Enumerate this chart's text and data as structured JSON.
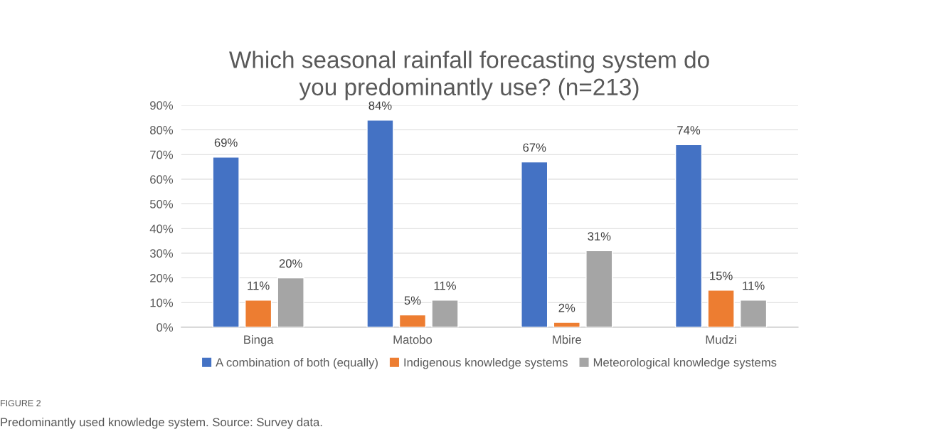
{
  "chart_data": {
    "type": "bar",
    "title": "Which seasonal rainfall forecasting system do\nyou predominantly use? (n=213)",
    "categories": [
      "Binga",
      "Matobo",
      "Mbire",
      "Mudzi"
    ],
    "series": [
      {
        "name": "A combination of both (equally)",
        "color": "#4472c4",
        "values": [
          69,
          84,
          67,
          74
        ],
        "value_labels": [
          "69%",
          "84%",
          "67%",
          "74%"
        ]
      },
      {
        "name": "Indigenous knowledge systems",
        "color": "#ed7d31",
        "values": [
          11,
          5,
          2,
          15
        ],
        "value_labels": [
          "11%",
          "5%",
          "2%",
          "15%"
        ]
      },
      {
        "name": "Meteorological knowledge systems",
        "color": "#a5a5a5",
        "values": [
          20,
          11,
          31,
          11
        ],
        "value_labels": [
          "20%",
          "11%",
          "31%",
          "11%"
        ]
      }
    ],
    "ylim": [
      0,
      90
    ],
    "yticks": [
      {
        "value": 0,
        "label": "0%"
      },
      {
        "value": 10,
        "label": "10%"
      },
      {
        "value": 20,
        "label": "20%"
      },
      {
        "value": 30,
        "label": "30%"
      },
      {
        "value": 40,
        "label": "40%"
      },
      {
        "value": 50,
        "label": "50%"
      },
      {
        "value": 60,
        "label": "60%"
      },
      {
        "value": 70,
        "label": "70%"
      },
      {
        "value": 80,
        "label": "80%"
      },
      {
        "value": 90,
        "label": "90%"
      }
    ],
    "grid": "y",
    "legend": "bottom",
    "annotations": [
      "FIGURE 2",
      "Predominantly used knowledge system. Source: Survey data."
    ]
  }
}
